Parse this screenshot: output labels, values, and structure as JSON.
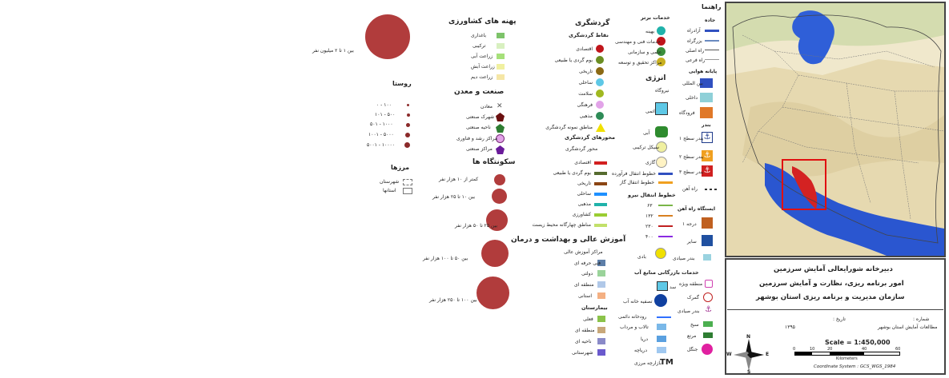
{
  "legend_title": "راهنما",
  "boundaries": {
    "title": "مرزها",
    "items": [
      {
        "label": "شهرستان"
      },
      {
        "label": "استانها"
      }
    ]
  },
  "rural": {
    "title": "روستا",
    "items": [
      {
        "label": "۱۰۰ - ۰"
      },
      {
        "label": "۵۰۰ - ۱۰۱"
      },
      {
        "label": "۱۰۰۰ - ۵۰۱"
      },
      {
        "label": "۵۰۰۰ - ۱۰۰۱"
      },
      {
        "label": "۱۰۰۰۰ - ۵۰۰۱"
      }
    ]
  },
  "big_city": {
    "label": "بین ۱ تا ۲ میلیون نفر"
  },
  "agri": {
    "title": "پهنه های کشاورزی",
    "items": [
      {
        "label": "باغداری"
      },
      {
        "label": "ترکیبی"
      },
      {
        "label": "زراعت آبی"
      },
      {
        "label": "زراعت آبش"
      },
      {
        "label": "زراعت دیم"
      }
    ]
  },
  "industry": {
    "title": "صنعت و معدن",
    "items": [
      {
        "label": "معادن"
      },
      {
        "label": "شهرک صنعتی"
      },
      {
        "label": "ناحیه صنعتی"
      },
      {
        "label": "مراکز رشد و فناوری"
      },
      {
        "label": "مراکز صنعتی"
      }
    ]
  },
  "settlements": {
    "title": "سکونتگاه ها",
    "items": [
      {
        "label": "کمتر از ۱۰ هزار نفر"
      },
      {
        "label": "بین ۱۰ تا ۲۵ هزار نفر"
      },
      {
        "label": "بین ۲۵ تا ۵۰ هزار نفر"
      },
      {
        "label": "بین ۵۰ تا ۱۰۰ هزار نفر"
      },
      {
        "label": "بین ۱۰۰ تا ۲۵۰ هزار نفر"
      }
    ]
  },
  "tourism": {
    "title": "گردشگری",
    "points_title": "نقاط گردشگری",
    "points": [
      {
        "label": "اقتصادی",
        "color": "#c0151b"
      },
      {
        "label": "بوم گردی یا طبیعی",
        "color": "#6b8e23"
      },
      {
        "label": "تاریخی",
        "color": "#8b6914"
      },
      {
        "label": "ساحلی",
        "color": "#5ec8e6"
      },
      {
        "label": "سلامت",
        "color": "#a0b820"
      },
      {
        "label": "فرهنگی",
        "color": "#e2a3e8"
      },
      {
        "label": "مذهبی",
        "color": "#2e8b57"
      },
      {
        "label": "مناطق نمونه گردشگری",
        "color": "#f0e000"
      }
    ],
    "axes_title": "محورهای گردشگری",
    "axes_sub": "محور گردشگری",
    "axes": [
      {
        "label": "اقتصادی",
        "color": "#d22020"
      },
      {
        "label": "بوم گردی یا طبیعی",
        "color": "#556b2f"
      },
      {
        "label": "تاریخی",
        "color": "#8b4513"
      },
      {
        "label": "ساحلی",
        "color": "#1e90ff"
      },
      {
        "label": "مذهبی",
        "color": "#20b2aa"
      },
      {
        "label": "کشاورزی",
        "color": "#9acd32"
      },
      {
        "label": "مناطق چهارگانه محیط زیست",
        "color": "#c2e06a"
      }
    ]
  },
  "education": {
    "title": "آموزش عالی و بهداشت و درمان",
    "sub": "مراکز آموزش عالی",
    "items": [
      {
        "label": "فنی حرفه ای"
      },
      {
        "label": "دولتی"
      },
      {
        "label": "منطقه ای"
      },
      {
        "label": "استانی"
      }
    ],
    "hospitals_title": "بیمارستان",
    "hospitals": [
      {
        "label": "فعلی"
      },
      {
        "label": "منطقه ای"
      },
      {
        "label": "ناحیه ای"
      },
      {
        "label": "شهرستانی"
      }
    ]
  },
  "services": {
    "title": "خدمات برتر",
    "items": [
      {
        "label": "بهینه"
      },
      {
        "label": "خدمات فنی و مهندسی"
      },
      {
        "label": "علمی و سازمانی"
      },
      {
        "label": "مراکز تحقیق و توسعه"
      }
    ]
  },
  "energy": {
    "title": "انرژی",
    "plant_title": "نیروگاه",
    "items": [
      {
        "label": "اتمی"
      },
      {
        "label": "آبی"
      },
      {
        "label": "سیکل ترکیبی"
      },
      {
        "label": "گازی"
      },
      {
        "label": "خطوط انتقال فرآورده"
      },
      {
        "label": "خطوط انتقال گاز"
      }
    ]
  },
  "power": {
    "title": "خطوط انتقال نیرو",
    "items": [
      {
        "label": "۶۳"
      },
      {
        "label": "۱۳۲"
      },
      {
        "label": "۲۳۰"
      },
      {
        "label": "۴۰۰"
      }
    ],
    "wind_label": "بادی"
  },
  "water": {
    "title": "خدمات بازرگانی منابع آب",
    "items": [
      {
        "label": "سد"
      },
      {
        "label": "تصفیه خانه آب"
      },
      {
        "label": "رودخانه دائمی"
      },
      {
        "label": "تالاب و مرداب"
      },
      {
        "label": "دریا"
      },
      {
        "label": "دریاچه"
      }
    ],
    "tm_label": "بازارچه مرزی"
  },
  "legend_right": {
    "roads_title": "جاده",
    "roads": [
      {
        "label": "آزادراه"
      },
      {
        "label": "بزرگراه"
      },
      {
        "label": "راه اصلی"
      },
      {
        "label": "راه فرعی"
      }
    ],
    "airport_title": "پایانه هوایی",
    "airports": [
      {
        "label": "بین المللی"
      },
      {
        "label": "داخلی"
      },
      {
        "label": "فرودگاه"
      }
    ],
    "port_title": "بندر",
    "ports": [
      {
        "label": "بندر سطح ۱"
      },
      {
        "label": "بندر سطح ۲"
      },
      {
        "label": "بندر سطح ۳"
      }
    ],
    "rail_title": "راه آهن",
    "rail_station_title": "ایستگاه راه آهن",
    "rails": [
      {
        "label": "درجه ۱"
      },
      {
        "label": "سایر"
      }
    ],
    "special_zone": "منطقه ویژه",
    "customs": "گمرک",
    "fishing": "بندر صیادی",
    "swamp": "سبخ",
    "pasture": "مرتع",
    "forest": "جنگل"
  },
  "title_block": {
    "line1": "دبیرخانه شورایعالی آمایش سرزمین",
    "line2": "امور برنامه ریزی، نظارت و آمایش سرزمین",
    "line3": "سازمان مدیریت و برنامه ریزی استان بوشهر",
    "meta1": "شماره :",
    "meta2": "تاریخ :",
    "meta3": "مطالعات آمایش استان بوشهر",
    "meta4": "۱۳۹۵"
  },
  "scale": {
    "text": "Scale = 1:450,000",
    "ticks": [
      "0",
      "10",
      "20",
      "40",
      "60"
    ],
    "unit": "Kilometers"
  },
  "compass": {
    "n": "N",
    "s": "S",
    "e": "E",
    "w": "W"
  },
  "coord_system": "Coordinate System : GCS_WGS_1984"
}
